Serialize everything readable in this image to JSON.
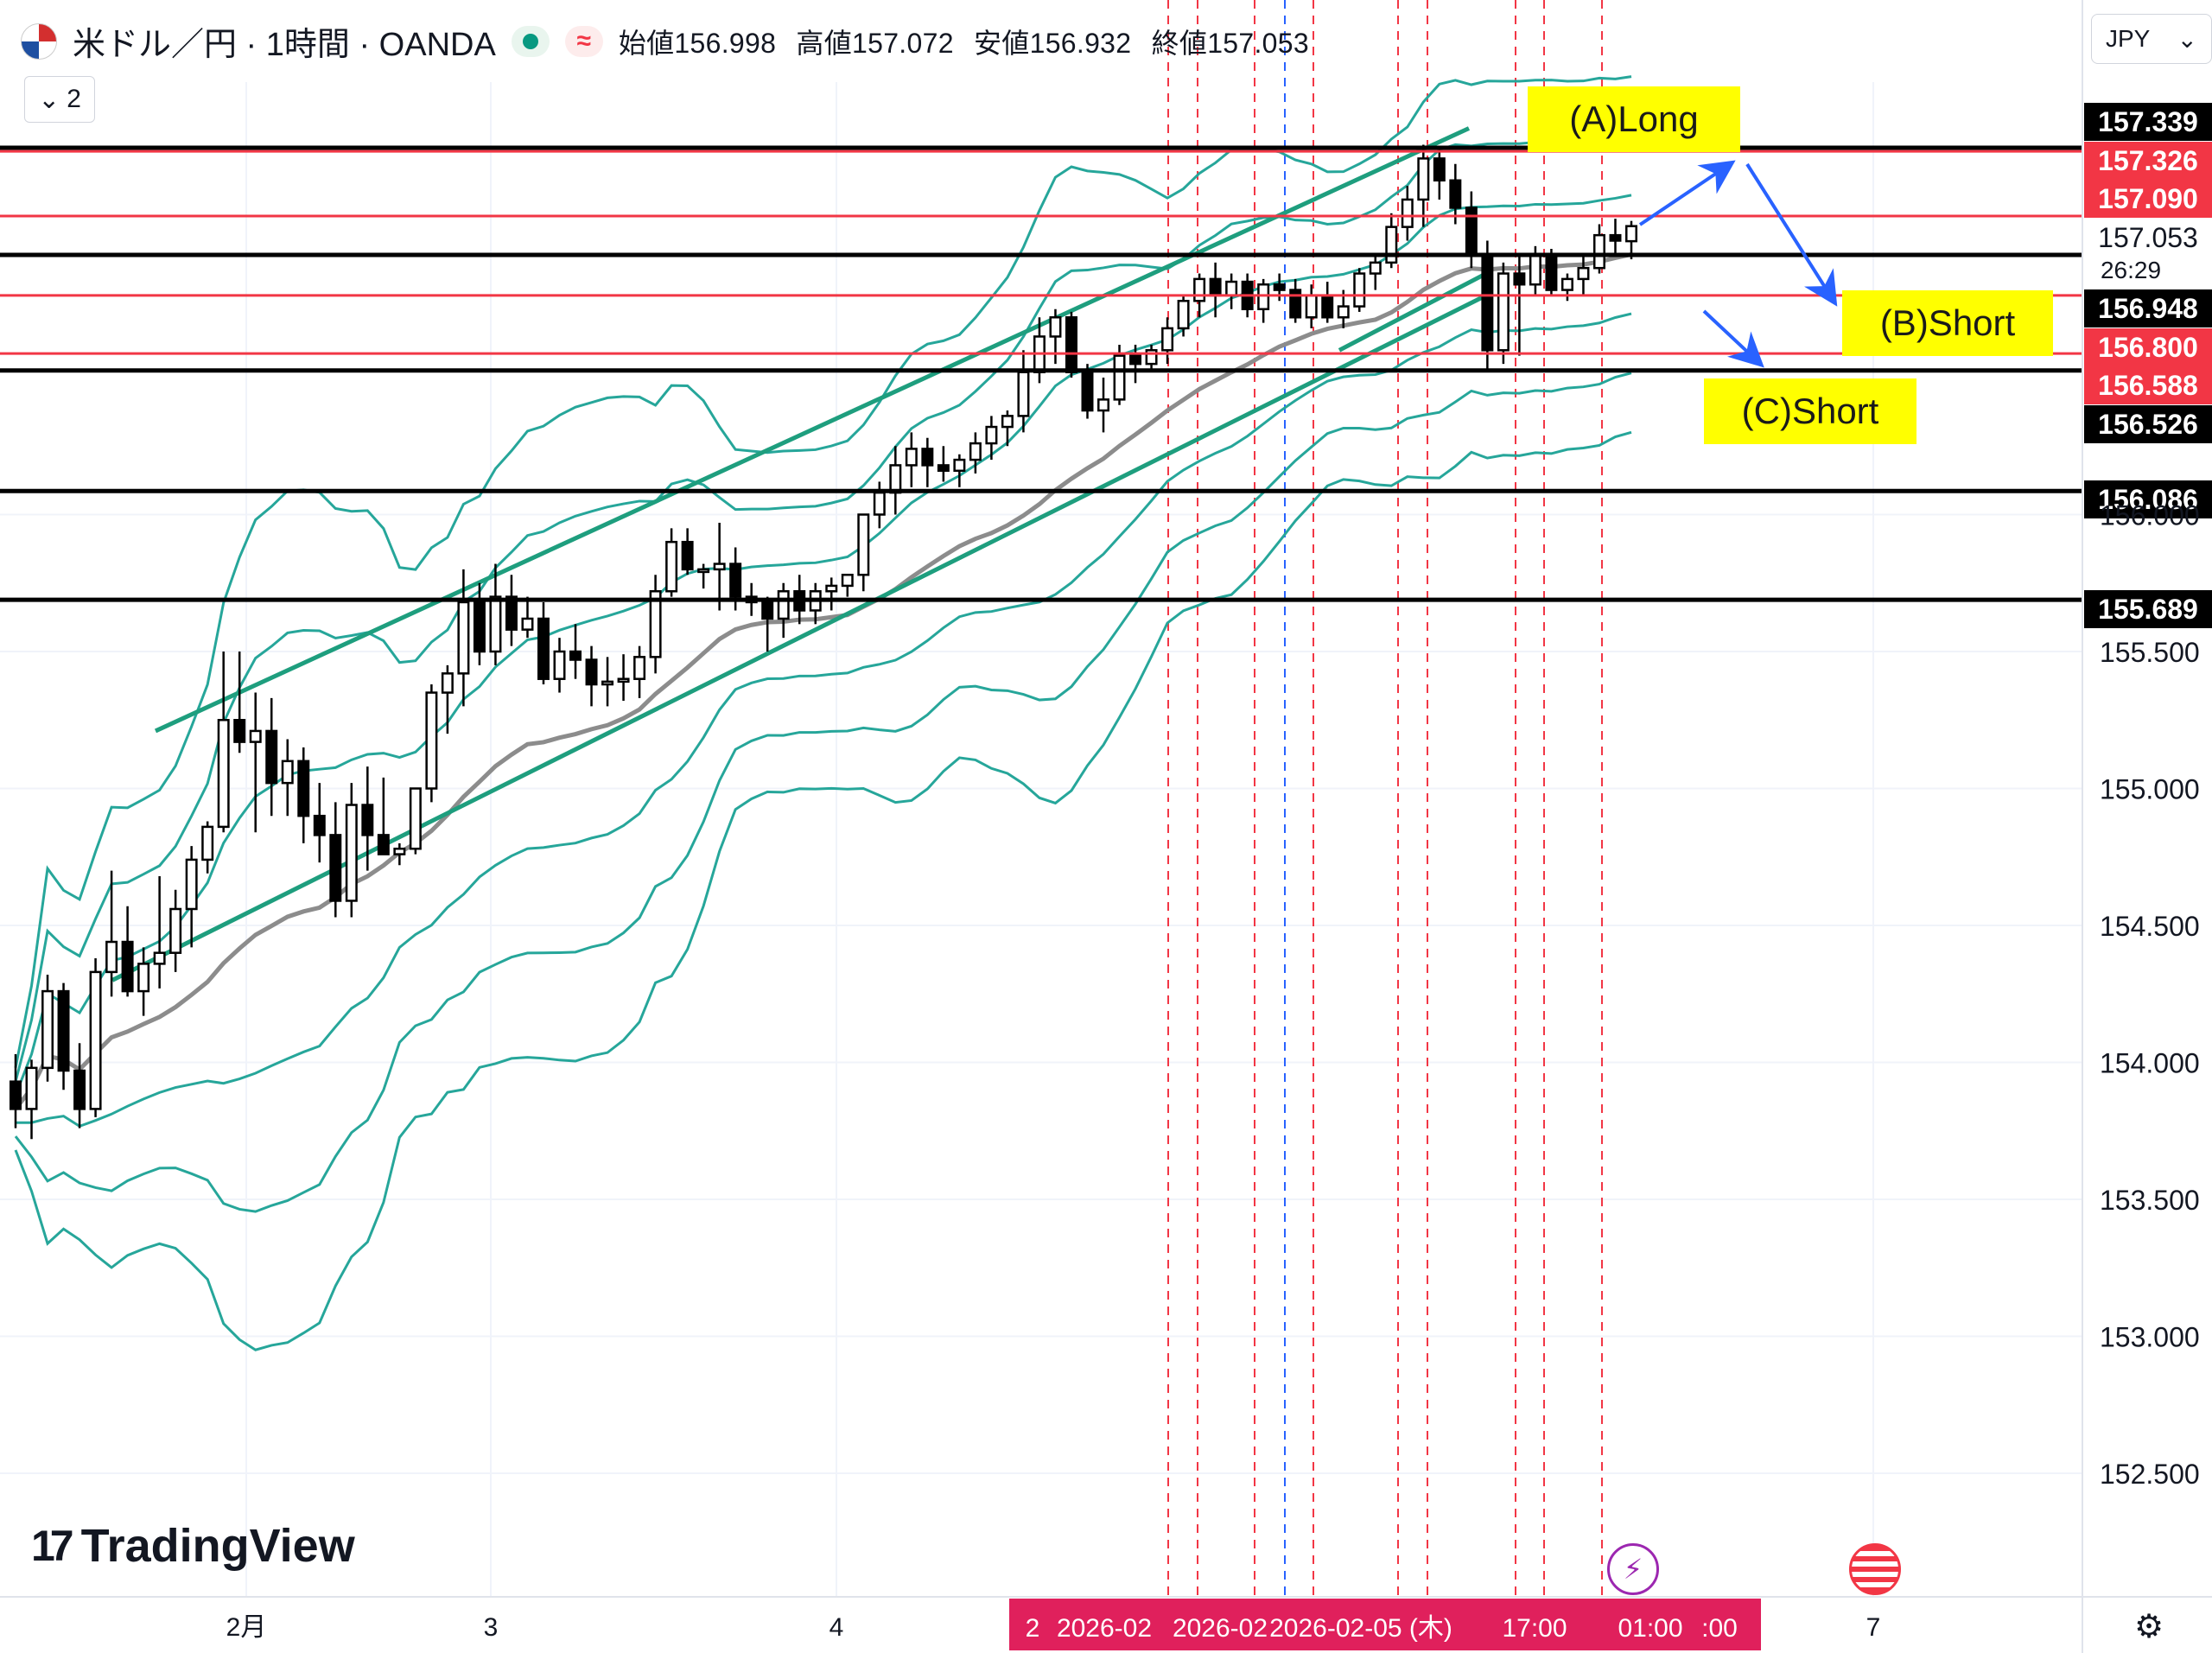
{
  "header": {
    "title": "米ドル／円 · 1時間 · OANDA",
    "open_label": "始値",
    "open_value": "156.998",
    "high_label": "高値",
    "high_value": "157.072",
    "low_label": "安値",
    "low_value": "156.932",
    "close_label": "終値",
    "close_value": "157.053",
    "collapse_count": "2",
    "currency": "JPY"
  },
  "brand": "TradingView",
  "annotations": {
    "long_label": "(A)Long",
    "short_b_label": "(B)Short",
    "short_c_label": "(C)Short"
  },
  "colors": {
    "up": "#ffffff",
    "down": "#000000",
    "bollinger": "#26a69a",
    "sma": "#8c8c8c",
    "channel": "#1e9e7e",
    "red_level": "#f23645",
    "black_level": "#000000",
    "arrow": "#2962ff",
    "tag": "#ffff00"
  },
  "chart_data": {
    "type": "candlestick",
    "symbol": "USD/JPY",
    "timeframe": "1H",
    "price_axis": {
      "ticks": [
        "152.500",
        "153.000",
        "153.500",
        "154.000",
        "154.500",
        "155.000",
        "155.500",
        "156.000"
      ],
      "range": [
        152.28,
        157.75
      ]
    },
    "time_axis": {
      "ticks": [
        "2月",
        "3",
        "4",
        "7"
      ],
      "highlight": [
        "2",
        "2026-02",
        "2026-02",
        "2026-02-05 (木)",
        "17:00",
        "01:00",
        ":00"
      ]
    },
    "last_price": "157.053",
    "countdown": "26:29",
    "levels": [
      {
        "price": 157.339,
        "label": "157.339",
        "kind": "black"
      },
      {
        "price": 157.326,
        "label": "157.326",
        "kind": "red"
      },
      {
        "price": 157.09,
        "label": "157.090",
        "kind": "red"
      },
      {
        "price": 156.948,
        "label": "156.948",
        "kind": "black"
      },
      {
        "price": 156.8,
        "label": "156.800",
        "kind": "red"
      },
      {
        "price": 156.588,
        "label": "156.588",
        "kind": "red"
      },
      {
        "price": 156.526,
        "label": "156.526",
        "kind": "black"
      },
      {
        "price": 156.086,
        "label": "156.086",
        "kind": "black"
      },
      {
        "price": 155.689,
        "label": "155.689",
        "kind": "black"
      }
    ],
    "candles": [
      [
        153.93,
        154.03,
        153.76,
        153.83
      ],
      [
        153.83,
        154.01,
        153.72,
        153.98
      ],
      [
        153.98,
        154.32,
        153.93,
        154.26
      ],
      [
        154.26,
        154.29,
        153.9,
        153.97
      ],
      [
        153.97,
        154.07,
        153.76,
        153.83
      ],
      [
        153.83,
        154.38,
        153.8,
        154.33
      ],
      [
        154.33,
        154.7,
        154.24,
        154.44
      ],
      [
        154.44,
        154.57,
        154.24,
        154.26
      ],
      [
        154.26,
        154.42,
        154.17,
        154.36
      ],
      [
        154.36,
        154.68,
        154.27,
        154.4
      ],
      [
        154.4,
        154.63,
        154.33,
        154.56
      ],
      [
        154.56,
        154.79,
        154.42,
        154.74
      ],
      [
        154.74,
        154.88,
        154.69,
        154.86
      ],
      [
        154.86,
        155.5,
        154.84,
        155.25
      ],
      [
        155.25,
        155.5,
        155.13,
        155.17
      ],
      [
        155.17,
        155.35,
        154.84,
        155.21
      ],
      [
        155.21,
        155.33,
        154.9,
        155.02
      ],
      [
        155.02,
        155.18,
        154.9,
        155.1
      ],
      [
        155.1,
        155.15,
        154.8,
        154.9
      ],
      [
        154.9,
        155.02,
        154.73,
        154.83
      ],
      [
        154.83,
        154.95,
        154.53,
        154.59
      ],
      [
        154.59,
        155.02,
        154.53,
        154.94
      ],
      [
        154.94,
        155.08,
        154.7,
        154.83
      ],
      [
        154.83,
        155.04,
        154.78,
        154.76
      ],
      [
        154.76,
        154.8,
        154.72,
        154.78
      ],
      [
        154.78,
        155.0,
        154.76,
        155.0
      ],
      [
        155.0,
        155.38,
        154.95,
        155.35
      ],
      [
        155.35,
        155.45,
        155.2,
        155.42
      ],
      [
        155.42,
        155.8,
        155.3,
        155.68
      ],
      [
        155.68,
        155.75,
        155.45,
        155.5
      ],
      [
        155.5,
        155.82,
        155.45,
        155.7
      ],
      [
        155.7,
        155.78,
        155.52,
        155.58
      ],
      [
        155.58,
        155.7,
        155.55,
        155.62
      ],
      [
        155.62,
        155.68,
        155.38,
        155.4
      ],
      [
        155.4,
        155.55,
        155.35,
        155.5
      ],
      [
        155.5,
        155.6,
        155.4,
        155.47
      ],
      [
        155.47,
        155.52,
        155.3,
        155.38
      ],
      [
        155.38,
        155.48,
        155.3,
        155.39
      ],
      [
        155.39,
        155.49,
        155.32,
        155.4
      ],
      [
        155.4,
        155.52,
        155.33,
        155.48
      ],
      [
        155.48,
        155.78,
        155.42,
        155.72
      ],
      [
        155.72,
        155.95,
        155.7,
        155.9
      ],
      [
        155.9,
        155.95,
        155.78,
        155.8
      ],
      [
        155.8,
        155.82,
        155.73,
        155.8
      ],
      [
        155.8,
        155.97,
        155.65,
        155.82
      ],
      [
        155.82,
        155.88,
        155.65,
        155.7
      ],
      [
        155.7,
        155.75,
        155.63,
        155.68
      ],
      [
        155.68,
        155.7,
        155.5,
        155.62
      ],
      [
        155.62,
        155.75,
        155.55,
        155.72
      ],
      [
        155.72,
        155.78,
        155.6,
        155.65
      ],
      [
        155.65,
        155.75,
        155.6,
        155.72
      ],
      [
        155.72,
        155.77,
        155.65,
        155.74
      ],
      [
        155.74,
        155.77,
        155.7,
        155.78
      ],
      [
        155.78,
        156.0,
        155.72,
        156.0
      ],
      [
        156.0,
        156.12,
        155.95,
        156.08
      ],
      [
        156.08,
        156.25,
        156.0,
        156.18
      ],
      [
        156.18,
        156.3,
        156.1,
        156.24
      ],
      [
        156.24,
        156.28,
        156.1,
        156.18
      ],
      [
        156.18,
        156.25,
        156.12,
        156.16
      ],
      [
        156.16,
        156.22,
        156.1,
        156.2
      ],
      [
        156.2,
        156.3,
        156.15,
        156.26
      ],
      [
        156.26,
        156.36,
        156.2,
        156.32
      ],
      [
        156.32,
        156.38,
        156.25,
        156.36
      ],
      [
        156.36,
        156.6,
        156.3,
        156.52
      ],
      [
        156.52,
        156.72,
        156.48,
        156.65
      ],
      [
        156.65,
        156.75,
        156.55,
        156.72
      ],
      [
        156.72,
        156.74,
        156.5,
        156.52
      ],
      [
        156.52,
        156.55,
        156.35,
        156.38
      ],
      [
        156.38,
        156.5,
        156.3,
        156.42
      ],
      [
        156.42,
        156.62,
        156.4,
        156.58
      ],
      [
        156.58,
        156.62,
        156.48,
        156.55
      ],
      [
        156.55,
        156.62,
        156.52,
        156.6
      ],
      [
        156.6,
        156.72,
        156.55,
        156.68
      ],
      [
        156.68,
        156.8,
        156.65,
        156.78
      ],
      [
        156.78,
        156.88,
        156.72,
        156.86
      ],
      [
        156.86,
        156.92,
        156.72,
        156.8
      ],
      [
        156.8,
        156.88,
        156.75,
        156.85
      ],
      [
        156.85,
        156.88,
        156.72,
        156.75
      ],
      [
        156.75,
        156.86,
        156.7,
        156.84
      ],
      [
        156.84,
        156.88,
        156.78,
        156.82
      ],
      [
        156.82,
        156.86,
        156.7,
        156.72
      ],
      [
        156.72,
        156.84,
        156.68,
        156.8
      ],
      [
        156.8,
        156.85,
        156.7,
        156.72
      ],
      [
        156.72,
        156.82,
        156.68,
        156.76
      ],
      [
        156.76,
        156.9,
        156.74,
        156.88
      ],
      [
        156.88,
        156.95,
        156.82,
        156.92
      ],
      [
        156.92,
        157.1,
        156.9,
        157.05
      ],
      [
        157.05,
        157.2,
        157.0,
        157.15
      ],
      [
        157.15,
        157.35,
        157.05,
        157.3
      ],
      [
        157.3,
        157.34,
        157.15,
        157.22
      ],
      [
        157.22,
        157.28,
        157.06,
        157.12
      ],
      [
        157.12,
        157.18,
        156.9,
        156.95
      ],
      [
        156.95,
        157.0,
        156.52,
        156.6
      ],
      [
        156.6,
        156.92,
        156.55,
        156.88
      ],
      [
        156.88,
        156.95,
        156.58,
        156.84
      ],
      [
        156.84,
        156.98,
        156.8,
        156.95
      ],
      [
        156.95,
        156.97,
        156.8,
        156.82
      ],
      [
        156.82,
        156.88,
        156.78,
        156.86
      ],
      [
        156.86,
        156.95,
        156.8,
        156.9
      ],
      [
        156.9,
        157.06,
        156.88,
        157.02
      ],
      [
        157.02,
        157.08,
        156.95,
        157.0
      ],
      [
        156.998,
        157.072,
        156.932,
        157.053
      ]
    ]
  }
}
